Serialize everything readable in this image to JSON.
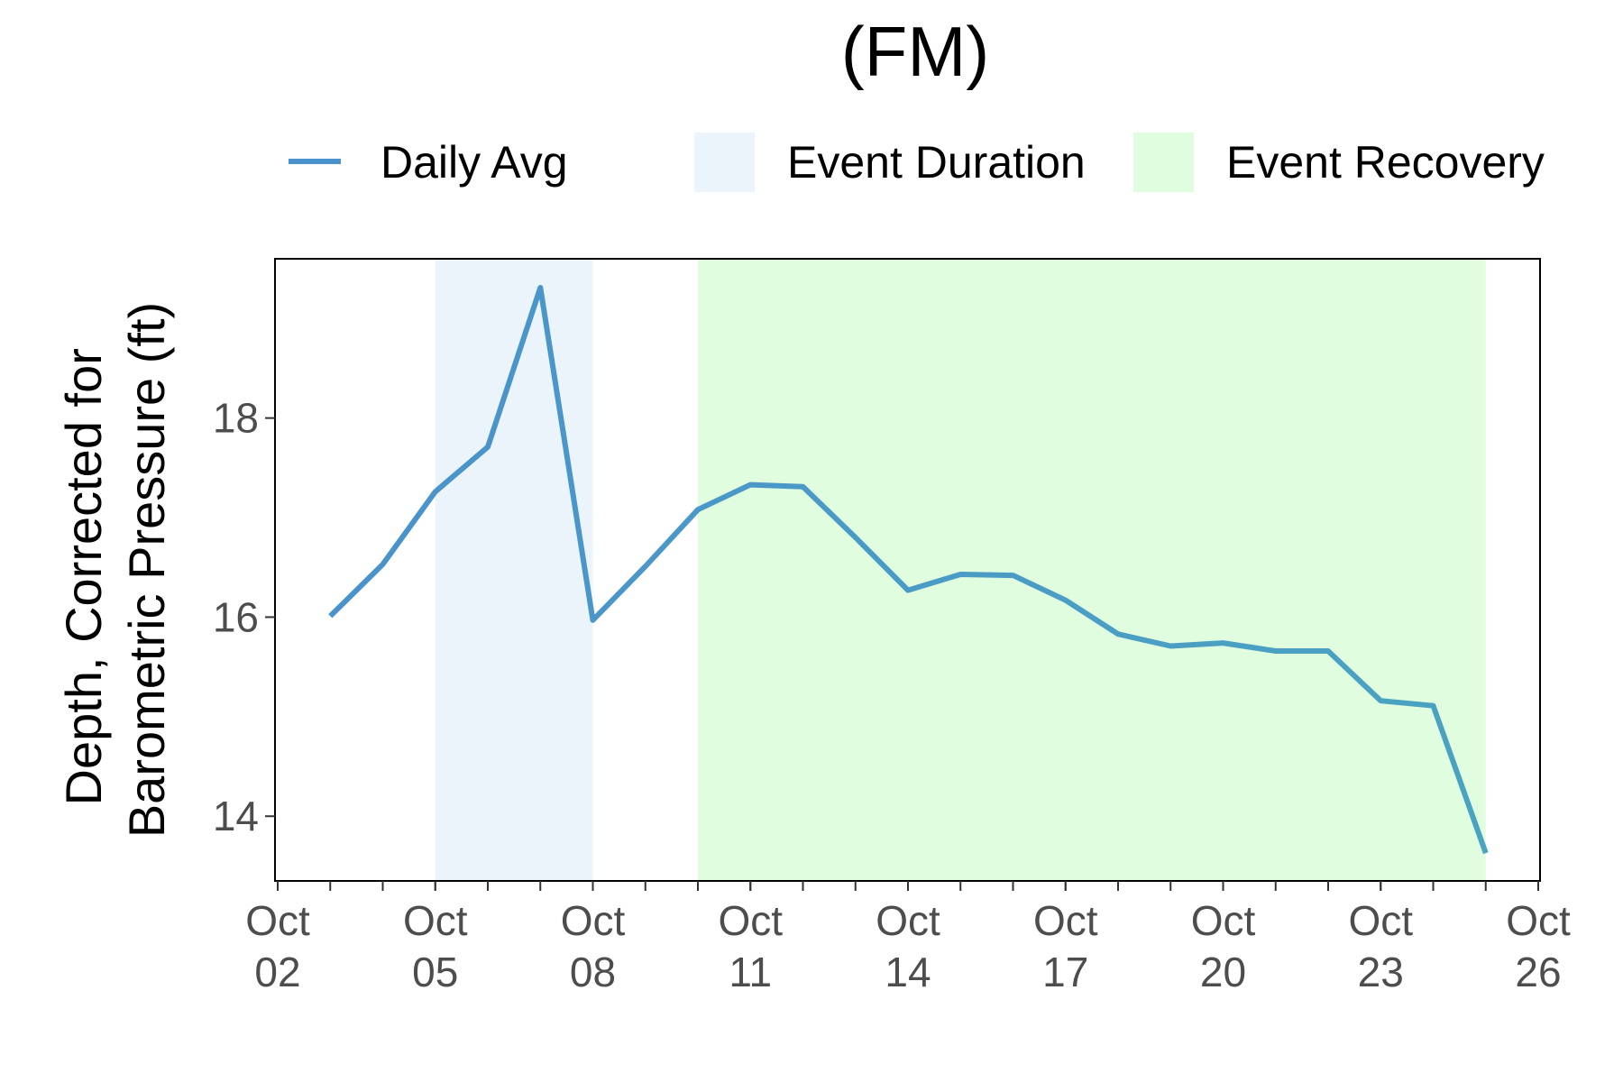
{
  "chart_data": {
    "type": "line",
    "title": "(FM)",
    "ylabel_lines": [
      "Depth, Corrected for",
      "Barometric Pressure (ft)"
    ],
    "xlabel": "",
    "x_domain": [
      "2023-10-02",
      "2023-10-26"
    ],
    "ylim": [
      13.35,
      19.6
    ],
    "yticks": [
      14,
      16,
      18
    ],
    "xticks": [
      {
        "date": "2023-10-02",
        "label": [
          "Oct",
          "02"
        ]
      },
      {
        "date": "2023-10-05",
        "label": [
          "Oct",
          "05"
        ]
      },
      {
        "date": "2023-10-08",
        "label": [
          "Oct",
          "08"
        ]
      },
      {
        "date": "2023-10-11",
        "label": [
          "Oct",
          "11"
        ]
      },
      {
        "date": "2023-10-14",
        "label": [
          "Oct",
          "14"
        ]
      },
      {
        "date": "2023-10-17",
        "label": [
          "Oct",
          "17"
        ]
      },
      {
        "date": "2023-10-20",
        "label": [
          "Oct",
          "20"
        ]
      },
      {
        "date": "2023-10-23",
        "label": [
          "Oct",
          "23"
        ]
      },
      {
        "date": "2023-10-26",
        "label": [
          "Oct",
          "26"
        ]
      }
    ],
    "minor_tick_step_days": 1,
    "bands": [
      {
        "name": "Event Duration",
        "start": "2023-10-05",
        "end": "2023-10-08",
        "color": "#ebf3fb"
      },
      {
        "name": "Event Recovery",
        "start": "2023-10-10",
        "end": "2023-10-25",
        "color": "#e0fde0"
      }
    ],
    "series": [
      {
        "name": "Daily Avg",
        "color": "#4a92cb",
        "color_end": "#4aa3c0",
        "x": [
          "2023-10-03",
          "2023-10-04",
          "2023-10-05",
          "2023-10-06",
          "2023-10-07",
          "2023-10-08",
          "2023-10-09",
          "2023-10-10",
          "2023-10-11",
          "2023-10-12",
          "2023-10-13",
          "2023-10-14",
          "2023-10-15",
          "2023-10-16",
          "2023-10-17",
          "2023-10-18",
          "2023-10-19",
          "2023-10-20",
          "2023-10-21",
          "2023-10-22",
          "2023-10-23",
          "2023-10-24",
          "2023-10-25"
        ],
        "values": [
          16.01,
          16.53,
          17.26,
          17.71,
          19.31,
          15.97,
          16.51,
          17.08,
          17.33,
          17.31,
          16.8,
          16.27,
          16.43,
          16.42,
          16.17,
          15.83,
          15.71,
          15.74,
          15.66,
          15.66,
          15.16,
          15.11,
          13.63
        ]
      }
    ],
    "legend": {
      "position": "top",
      "items": [
        {
          "label": "Daily Avg",
          "kind": "line",
          "color": "#4a92cb"
        },
        {
          "label": "Event Duration",
          "kind": "box",
          "color": "#ebf3fb"
        },
        {
          "label": "Event Recovery",
          "kind": "box",
          "color": "#e0fde0"
        }
      ]
    },
    "grid": false
  }
}
